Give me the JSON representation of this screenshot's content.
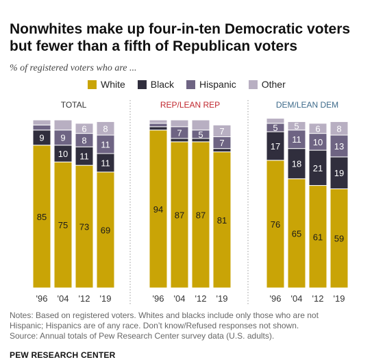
{
  "title_line1": "Nonwhites make up four-in-ten Democratic voters",
  "title_line2": "but fewer than a fifth of Republican voters",
  "subtitle": "% of registered voters who are ...",
  "legend": [
    {
      "label": "White",
      "color": "#C9A406"
    },
    {
      "label": "Black",
      "color": "#302E3D"
    },
    {
      "label": "Hispanic",
      "color": "#6E6483"
    },
    {
      "label": "Other",
      "color": "#B8AFC2"
    }
  ],
  "colors": {
    "white": "#C9A406",
    "black": "#302E3D",
    "hispanic": "#6E6483",
    "other": "#B8AFC2",
    "rep_title": "#C0262D",
    "dem_title": "#3D6A8A",
    "total_title": "#333333"
  },
  "chart_data": {
    "type": "bar",
    "stacked": true,
    "series_names": [
      "White",
      "Black",
      "Hispanic",
      "Other"
    ],
    "categories": [
      "'96",
      "'04",
      "'12",
      "'19"
    ],
    "ylim": [
      0,
      100
    ],
    "panels": [
      {
        "title": "TOTAL",
        "series": [
          {
            "name": "White",
            "values": [
              85,
              75,
              73,
              69
            ]
          },
          {
            "name": "Black",
            "values": [
              9,
              10,
              11,
              11
            ]
          },
          {
            "name": "Hispanic",
            "values": [
              3,
              9,
              8,
              11
            ]
          },
          {
            "name": "Other",
            "values": [
              3,
              6,
              6,
              8
            ]
          }
        ],
        "labels": [
          [
            "85",
            "9",
            "",
            ""
          ],
          [
            "75",
            "10",
            "9",
            ""
          ],
          [
            "73",
            "11",
            "8",
            "6"
          ],
          [
            "69",
            "11",
            "11",
            "8"
          ]
        ]
      },
      {
        "title": "REP/LEAN REP",
        "series": [
          {
            "name": "White",
            "values": [
              94,
              87,
              87,
              81
            ]
          },
          {
            "name": "Black",
            "values": [
              2,
              2,
              2,
              2
            ]
          },
          {
            "name": "Hispanic",
            "values": [
              2,
              7,
              5,
              7
            ]
          },
          {
            "name": "Other",
            "values": [
              2,
              4,
              6,
              7
            ]
          }
        ],
        "labels": [
          [
            "94",
            "",
            "",
            ""
          ],
          [
            "87",
            "",
            "7",
            ""
          ],
          [
            "87",
            "",
            "5",
            ""
          ],
          [
            "81",
            "",
            "7",
            "7"
          ]
        ]
      },
      {
        "title": "DEM/LEAN DEM",
        "series": [
          {
            "name": "White",
            "values": [
              76,
              65,
              61,
              59
            ]
          },
          {
            "name": "Black",
            "values": [
              17,
              18,
              21,
              19
            ]
          },
          {
            "name": "Hispanic",
            "values": [
              5,
              11,
              10,
              13
            ]
          },
          {
            "name": "Other",
            "values": [
              3,
              5,
              6,
              8
            ]
          }
        ],
        "labels": [
          [
            "76",
            "17",
            "5",
            ""
          ],
          [
            "65",
            "18",
            "11",
            "5"
          ],
          [
            "61",
            "21",
            "10",
            "6"
          ],
          [
            "59",
            "19",
            "13",
            "8"
          ]
        ]
      }
    ]
  },
  "notes": [
    "Notes: Based on registered voters. Whites and blacks include only those who are not",
    "Hispanic; Hispanics are of any race. Don’t know/Refused responses not shown.",
    "Source: Annual totals of Pew Research Center survey data (U.S. adults)."
  ],
  "source_org": "PEW RESEARCH CENTER"
}
